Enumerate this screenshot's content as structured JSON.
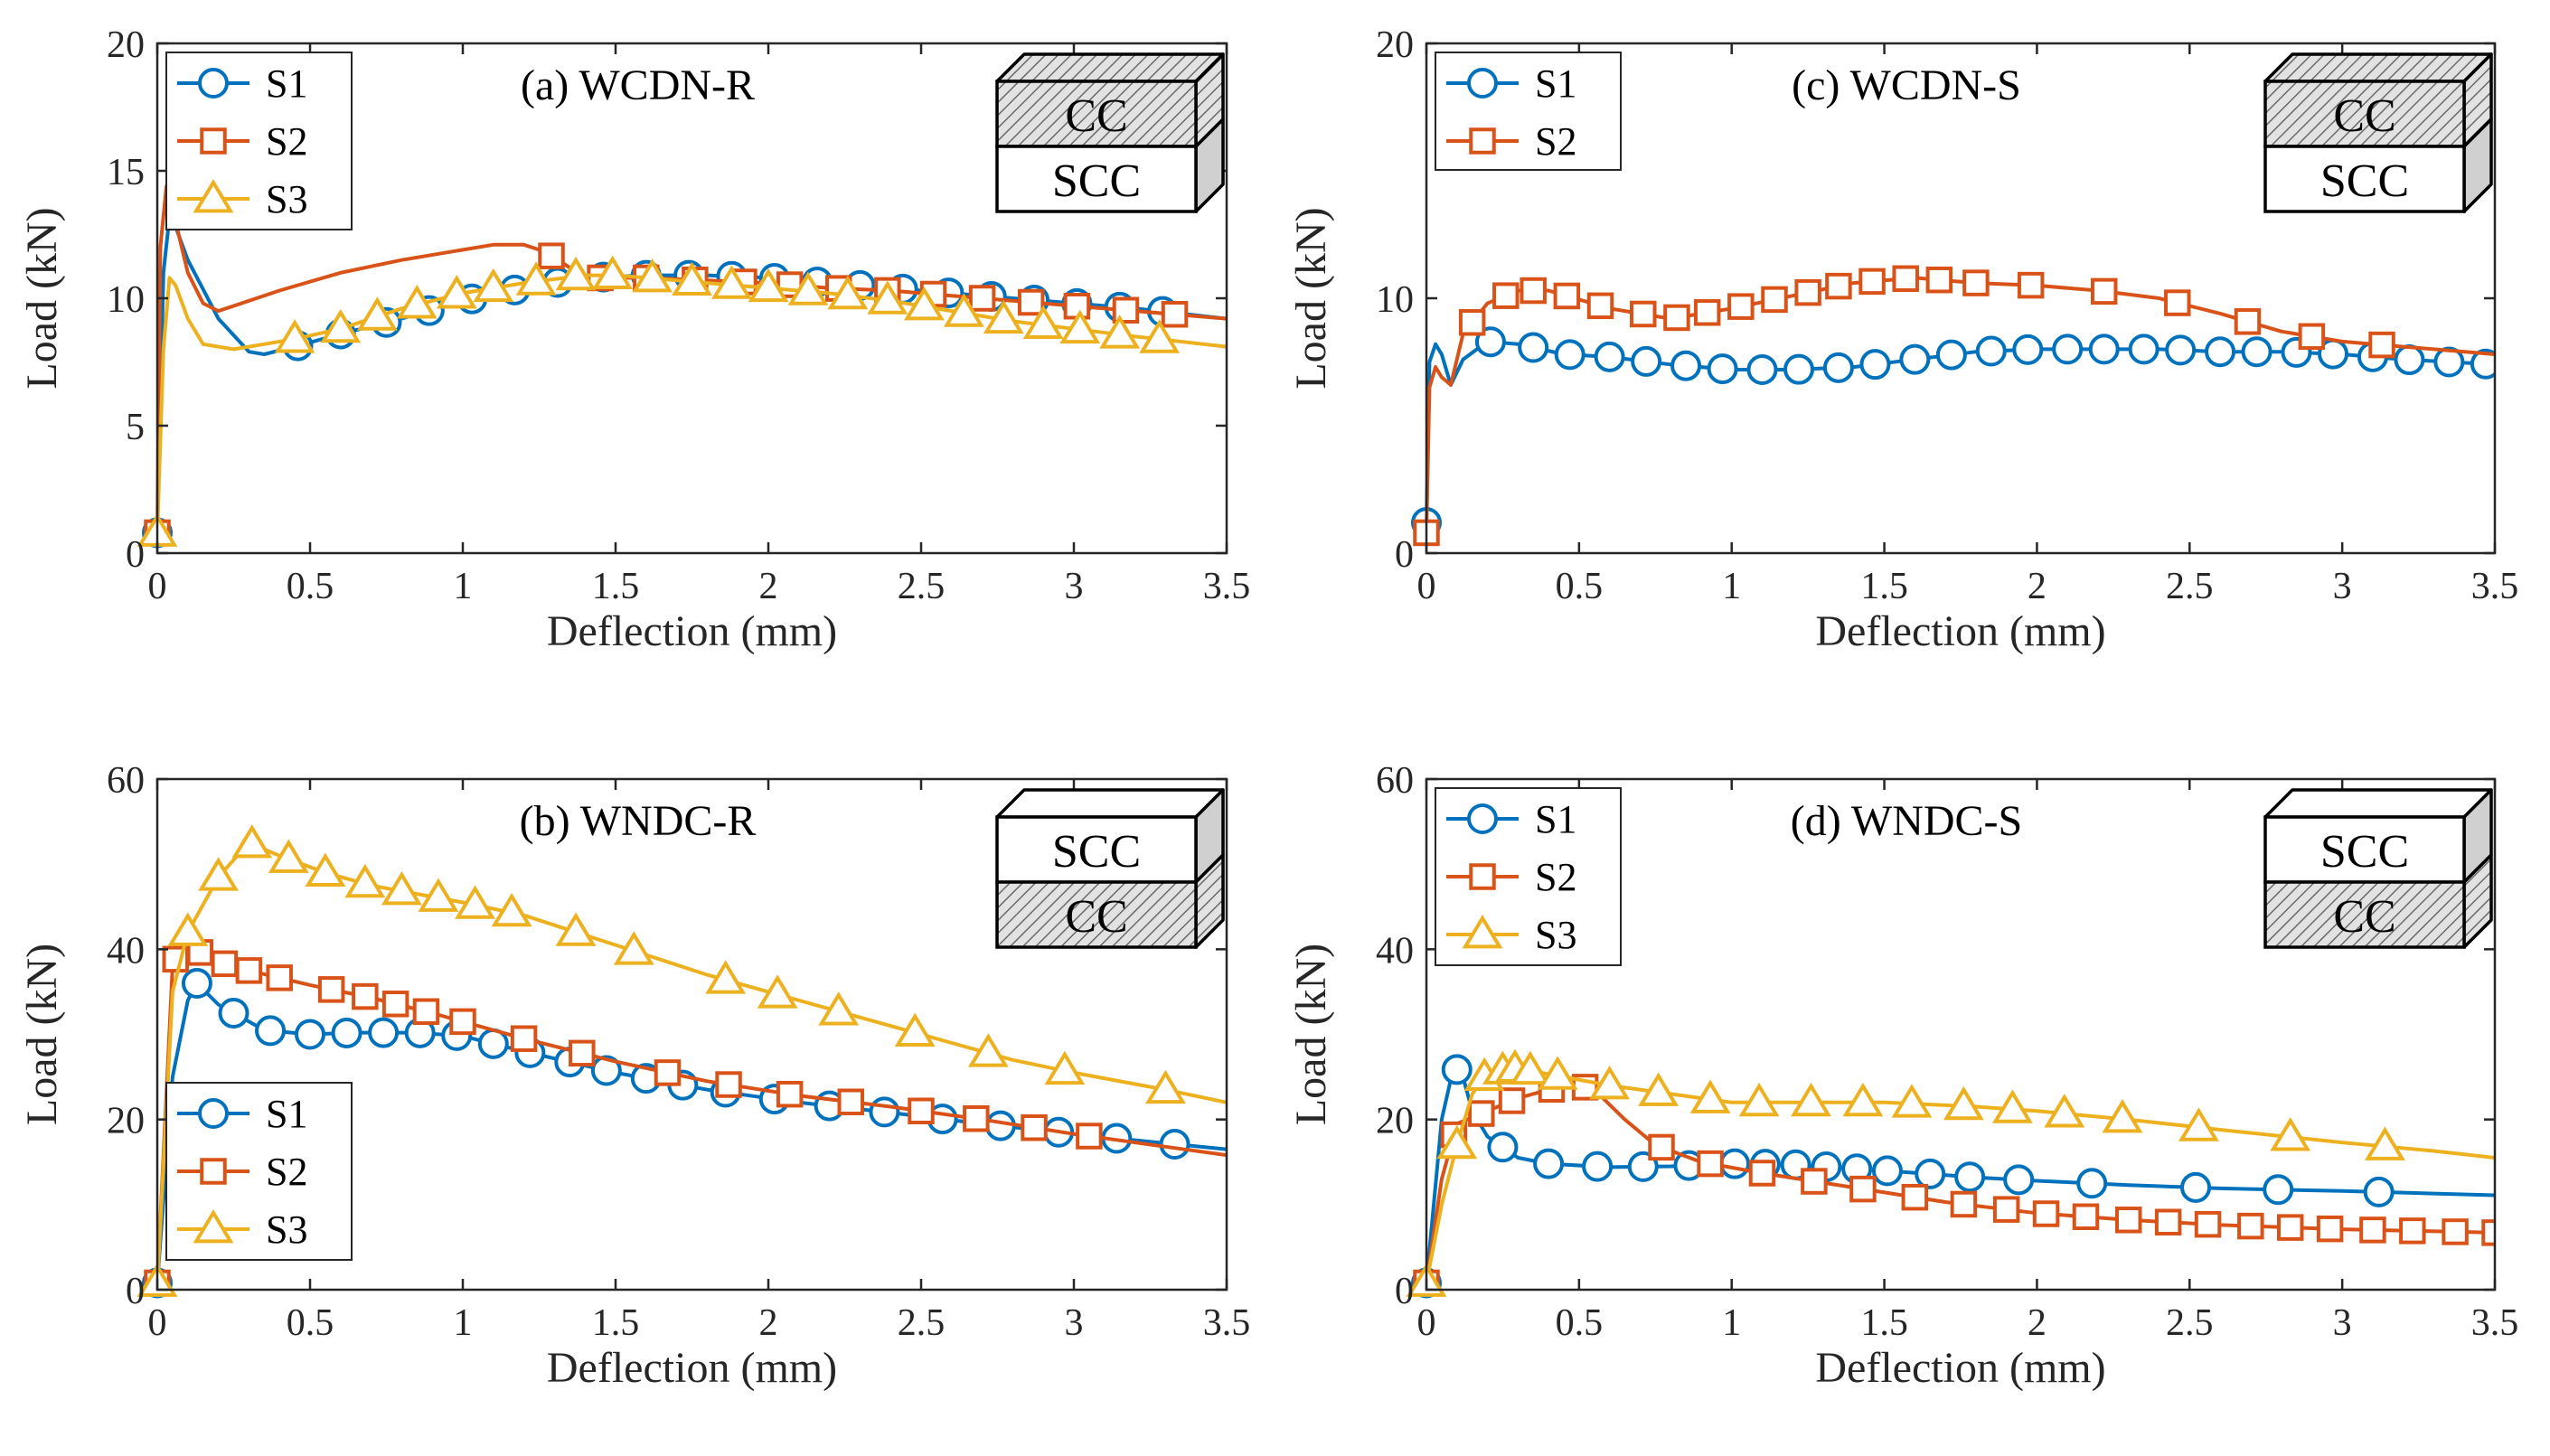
{
  "chart_data": [
    {
      "id": "a",
      "type": "line",
      "title": "(a) WCDN-R",
      "xlabel": "Deflection (mm)",
      "ylabel": "Load (kN)",
      "xlim": [
        0,
        3.5
      ],
      "ylim": [
        0,
        20
      ],
      "xticks": [
        "0",
        "0.5",
        "1",
        "1.5",
        "2",
        "2.5",
        "3",
        "3.5"
      ],
      "yticks": [
        "0",
        "5",
        "10",
        "15",
        "20"
      ],
      "legend_position": "top-left",
      "block": {
        "top": "CC",
        "bottom": "SCC",
        "hatched": "top"
      },
      "series": [
        {
          "name": "S1",
          "color": "#0072BD",
          "marker": "circle",
          "x": [
            0,
            0.02,
            0.04,
            0.06,
            0.1,
            0.2,
            0.3,
            0.35,
            0.45,
            0.6,
            0.8,
            1.0,
            1.2,
            1.4,
            1.6,
            1.8,
            2.0,
            2.2,
            2.4,
            2.6,
            2.8,
            3.0,
            3.2,
            3.5
          ],
          "y": [
            0.8,
            11,
            13.2,
            12.8,
            11.5,
            9.2,
            7.9,
            7.8,
            8.1,
            8.6,
            9.2,
            9.9,
            10.4,
            10.8,
            10.9,
            10.9,
            10.8,
            10.6,
            10.4,
            10.2,
            10.0,
            9.8,
            9.6,
            9.2
          ],
          "marker_x": [
            0,
            0.46,
            0.6,
            0.75,
            0.89,
            1.03,
            1.17,
            1.31,
            1.46,
            1.6,
            1.74,
            1.88,
            2.02,
            2.16,
            2.3,
            2.44,
            2.59,
            2.73,
            2.87,
            3.01,
            3.15,
            3.29
          ]
        },
        {
          "name": "S2",
          "color": "#D95319",
          "marker": "square",
          "x": [
            0,
            0.01,
            0.03,
            0.05,
            0.1,
            0.15,
            0.2,
            0.4,
            0.6,
            0.8,
            1.0,
            1.1,
            1.2,
            1.25,
            1.3,
            1.4,
            1.6,
            1.8,
            2.0,
            2.2,
            2.4,
            2.6,
            2.8,
            3.0,
            3.2,
            3.5
          ],
          "y": [
            0.8,
            12,
            14.4,
            13.5,
            11,
            9.8,
            9.5,
            10.3,
            11.0,
            11.5,
            11.9,
            12.1,
            12.1,
            11.9,
            11.6,
            10.8,
            10.8,
            10.7,
            10.6,
            10.4,
            10.3,
            10.1,
            9.9,
            9.7,
            9.5,
            9.2
          ],
          "marker_x": [
            0,
            1.29,
            1.45,
            1.6,
            1.76,
            1.92,
            2.07,
            2.23,
            2.39,
            2.54,
            2.7,
            2.86,
            3.01,
            3.17,
            3.33
          ]
        },
        {
          "name": "S3",
          "color": "#EDB120",
          "marker": "triangle",
          "x": [
            0,
            0.02,
            0.04,
            0.06,
            0.1,
            0.15,
            0.25,
            0.35,
            0.45,
            0.6,
            0.8,
            1.0,
            1.2,
            1.4,
            1.5,
            1.6,
            1.8,
            2.0,
            2.2,
            2.4,
            2.6,
            2.8,
            3.0,
            3.2,
            3.5
          ],
          "y": [
            0.8,
            8,
            10.8,
            10.5,
            9.2,
            8.2,
            8.0,
            8.2,
            8.4,
            8.8,
            9.6,
            10.2,
            10.6,
            10.9,
            10.9,
            10.8,
            10.6,
            10.4,
            10.2,
            9.9,
            9.5,
            9.1,
            8.8,
            8.5,
            8.1
          ],
          "marker_x": [
            0,
            0.45,
            0.6,
            0.72,
            0.85,
            0.98,
            1.1,
            1.24,
            1.37,
            1.49,
            1.62,
            1.75,
            1.88,
            2.0,
            2.13,
            2.26,
            2.39,
            2.51,
            2.64,
            2.77,
            2.9,
            3.02,
            3.15,
            3.28
          ]
        }
      ]
    },
    {
      "id": "b",
      "type": "line",
      "title": "(b) WNDC-R",
      "xlabel": "Deflection (mm)",
      "ylabel": "Load (kN)",
      "xlim": [
        0,
        3.5
      ],
      "ylim": [
        0,
        60
      ],
      "xticks": [
        "0",
        "0.5",
        "1",
        "1.5",
        "2",
        "2.5",
        "3",
        "3.5"
      ],
      "yticks": [
        "0",
        "20",
        "40",
        "60"
      ],
      "legend_position": "bottom-left",
      "block": {
        "top": "SCC",
        "bottom": "CC",
        "hatched": "bottom"
      },
      "series": [
        {
          "name": "S1",
          "color": "#0072BD",
          "marker": "circle",
          "x": [
            0,
            0.05,
            0.1,
            0.13,
            0.2,
            0.35,
            0.5,
            0.65,
            0.85,
            1.0,
            1.2,
            1.5,
            1.8,
            2.1,
            2.4,
            2.7,
            3.0,
            3.3,
            3.5
          ],
          "y": [
            0.8,
            25,
            34,
            36,
            33.5,
            30.5,
            30,
            30.2,
            30.2,
            29.8,
            28,
            25.5,
            23.5,
            22,
            20.8,
            19.5,
            18.3,
            17.2,
            16.5
          ],
          "marker_x": [
            0,
            0.13,
            0.25,
            0.37,
            0.5,
            0.62,
            0.74,
            0.86,
            0.98,
            1.1,
            1.22,
            1.35,
            1.47,
            1.6,
            1.72,
            1.86,
            2.02,
            2.2,
            2.38,
            2.57,
            2.76,
            2.95,
            3.14,
            3.33
          ]
        },
        {
          "name": "S2",
          "color": "#D95319",
          "marker": "square",
          "x": [
            0,
            0.05,
            0.08,
            0.12,
            0.2,
            0.3,
            0.5,
            0.7,
            0.9,
            1.0,
            1.2,
            1.5,
            1.8,
            2.1,
            2.4,
            2.7,
            3.0,
            3.3,
            3.5
          ],
          "y": [
            0.8,
            38,
            40.5,
            40,
            38.5,
            37.5,
            35.8,
            34.3,
            32.5,
            31.5,
            29.5,
            26.8,
            24.5,
            22.8,
            21.5,
            20,
            18.3,
            16.8,
            15.8
          ],
          "marker_x": [
            0,
            0.06,
            0.14,
            0.22,
            0.3,
            0.4,
            0.57,
            0.68,
            0.78,
            0.88,
            1.0,
            1.2,
            1.39,
            1.67,
            1.87,
            2.07,
            2.27,
            2.5,
            2.68,
            2.87,
            3.05
          ]
        },
        {
          "name": "S3",
          "color": "#EDB120",
          "marker": "triangle",
          "x": [
            0,
            0.05,
            0.1,
            0.2,
            0.3,
            0.4,
            0.55,
            0.7,
            0.85,
            1.0,
            1.2,
            1.5,
            1.8,
            2.0,
            2.3,
            2.5,
            2.8,
            3.0,
            3.3,
            3.5
          ],
          "y": [
            0.8,
            35,
            42,
            48.5,
            52.5,
            51,
            49,
            47.5,
            46.5,
            45.5,
            44,
            40.5,
            37,
            35,
            32,
            30,
            27,
            25.5,
            23.5,
            22
          ],
          "marker_x": [
            0,
            0.1,
            0.2,
            0.31,
            0.43,
            0.55,
            0.68,
            0.8,
            0.92,
            1.04,
            1.16,
            1.37,
            1.56,
            1.86,
            2.03,
            2.23,
            2.48,
            2.72,
            2.97,
            3.3
          ]
        }
      ]
    },
    {
      "id": "c",
      "type": "line",
      "title": "(c) WCDN-S",
      "xlabel": "Deflection (mm)",
      "ylabel": "Load (kN)",
      "xlim": [
        0,
        3.5
      ],
      "ylim": [
        0,
        20
      ],
      "xticks": [
        "0",
        "0.5",
        "1",
        "1.5",
        "2",
        "2.5",
        "3",
        "3.5"
      ],
      "yticks": [
        "0",
        "10",
        "20"
      ],
      "legend_position": "top-left",
      "block": {
        "top": "CC",
        "bottom": "SCC",
        "hatched": "top"
      },
      "series": [
        {
          "name": "S1",
          "color": "#0072BD",
          "marker": "circle",
          "x": [
            0,
            0.01,
            0.03,
            0.05,
            0.08,
            0.12,
            0.2,
            0.3,
            0.45,
            0.6,
            0.8,
            1.0,
            1.2,
            1.4,
            1.6,
            1.8,
            2.0,
            2.2,
            2.4,
            2.6,
            2.8,
            3.0,
            3.2,
            3.5
          ],
          "y": [
            1.2,
            7.5,
            8.2,
            7.8,
            6.6,
            7.6,
            8.3,
            8.2,
            7.8,
            7.7,
            7.4,
            7.2,
            7.2,
            7.3,
            7.6,
            7.9,
            8.0,
            8.0,
            8.0,
            7.9,
            7.9,
            7.8,
            7.6,
            7.4
          ],
          "marker_x": [
            0,
            0.21,
            0.35,
            0.47,
            0.6,
            0.72,
            0.85,
            0.97,
            1.1,
            1.22,
            1.35,
            1.47,
            1.6,
            1.72,
            1.85,
            1.97,
            2.1,
            2.22,
            2.35,
            2.47,
            2.6,
            2.72,
            2.85,
            2.97,
            3.1,
            3.22,
            3.35,
            3.47
          ]
        },
        {
          "name": "S2",
          "color": "#D95319",
          "marker": "square",
          "x": [
            0,
            0.01,
            0.03,
            0.05,
            0.08,
            0.12,
            0.2,
            0.3,
            0.4,
            0.6,
            0.8,
            1.0,
            1.2,
            1.4,
            1.6,
            1.8,
            2.0,
            2.2,
            2.4,
            2.6,
            2.8,
            3.0,
            3.2,
            3.5
          ],
          "y": [
            0.8,
            6.5,
            7.3,
            6.9,
            6.6,
            8.6,
            9.8,
            10.3,
            10.3,
            9.6,
            9.2,
            9.6,
            10.1,
            10.6,
            10.8,
            10.6,
            10.5,
            10.3,
            10.0,
            9.4,
            8.7,
            8.3,
            8.1,
            7.8
          ],
          "marker_x": [
            0,
            0.15,
            0.26,
            0.35,
            0.46,
            0.57,
            0.71,
            0.82,
            0.92,
            1.03,
            1.14,
            1.25,
            1.35,
            1.46,
            1.57,
            1.68,
            1.8,
            1.98,
            2.22,
            2.46,
            2.69,
            2.9,
            3.13
          ]
        }
      ]
    },
    {
      "id": "d",
      "type": "line",
      "title": "(d) WNDC-S",
      "xlabel": "Deflection (mm)",
      "ylabel": "Load (kN)",
      "xlim": [
        0,
        3.5
      ],
      "ylim": [
        0,
        60
      ],
      "xticks": [
        "0",
        "0.5",
        "1",
        "1.5",
        "2",
        "2.5",
        "3",
        "3.5"
      ],
      "yticks": [
        "0",
        "20",
        "40",
        "60"
      ],
      "legend_position": "top-left",
      "block": {
        "top": "SCC",
        "bottom": "CC",
        "hatched": "bottom"
      },
      "series": [
        {
          "name": "S1",
          "color": "#0072BD",
          "marker": "circle",
          "x": [
            0,
            0.05,
            0.09,
            0.12,
            0.15,
            0.2,
            0.3,
            0.4,
            0.6,
            0.8,
            1.0,
            1.2,
            1.5,
            1.8,
            2.0,
            2.3,
            2.6,
            3.0,
            3.3,
            3.5
          ],
          "y": [
            0.8,
            20,
            26.3,
            25,
            21,
            18,
            15.5,
            14.8,
            14.4,
            14.5,
            14.8,
            14.7,
            14.0,
            13.2,
            12.8,
            12.3,
            11.9,
            11.6,
            11.3,
            11.1
          ],
          "marker_x": [
            0,
            0.1,
            0.25,
            0.4,
            0.56,
            0.71,
            0.86,
            1.01,
            1.11,
            1.21,
            1.31,
            1.41,
            1.51,
            1.65,
            1.78,
            1.94,
            2.18,
            2.52,
            2.79,
            3.12
          ]
        },
        {
          "name": "S2",
          "color": "#D95319",
          "marker": "square",
          "x": [
            0,
            0.05,
            0.1,
            0.2,
            0.3,
            0.4,
            0.5,
            0.55,
            0.65,
            0.75,
            0.9,
            1.1,
            1.4,
            1.7,
            2.0,
            2.3,
            2.6,
            3.0,
            3.5
          ],
          "y": [
            0.8,
            13,
            19.5,
            21,
            22.5,
            23.5,
            24,
            23.5,
            20,
            17,
            15,
            13.7,
            12,
            10.3,
            9.0,
            8.2,
            7.6,
            7.1,
            6.7
          ],
          "marker_x": [
            0,
            0.09,
            0.18,
            0.28,
            0.41,
            0.52,
            0.77,
            0.93,
            1.1,
            1.27,
            1.43,
            1.6,
            1.76,
            1.9,
            2.03,
            2.16,
            2.3,
            2.43,
            2.56,
            2.7,
            2.83,
            2.96,
            3.1,
            3.23,
            3.37,
            3.5
          ]
        },
        {
          "name": "S3",
          "color": "#EDB120",
          "marker": "triangle",
          "x": [
            0,
            0.05,
            0.1,
            0.15,
            0.2,
            0.3,
            0.45,
            0.6,
            0.8,
            1.0,
            1.2,
            1.5,
            1.8,
            2.0,
            2.3,
            2.6,
            3.0,
            3.3,
            3.5
          ],
          "y": [
            0.8,
            10,
            17,
            23,
            25.5,
            26,
            25,
            24,
            23,
            22,
            22,
            22,
            21.5,
            21,
            20,
            18.8,
            17.3,
            16.3,
            15.5
          ],
          "marker_x": [
            0,
            0.1,
            0.19,
            0.25,
            0.29,
            0.34,
            0.43,
            0.6,
            0.76,
            0.93,
            1.09,
            1.26,
            1.43,
            1.59,
            1.76,
            1.92,
            2.09,
            2.28,
            2.53,
            2.83,
            3.14
          ]
        }
      ]
    }
  ]
}
